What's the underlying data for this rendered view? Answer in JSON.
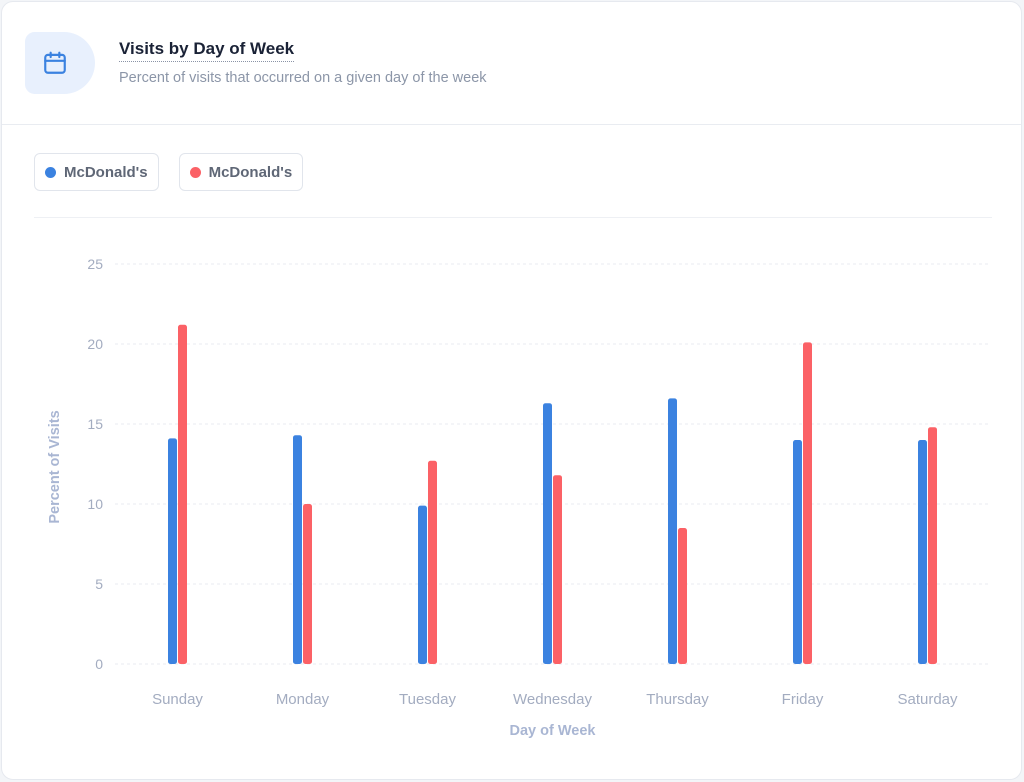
{
  "header": {
    "icon": "calendar-icon",
    "title": "Visits by Day of Week",
    "subtitle": "Percent of visits that occurred on a given day of the week"
  },
  "legend": [
    {
      "label": "McDonald's",
      "color": "#3b82e0"
    },
    {
      "label": "McDonald's",
      "color": "#fb6166"
    }
  ],
  "chart_data": {
    "type": "bar",
    "categories": [
      "Sunday",
      "Monday",
      "Tuesday",
      "Wednesday",
      "Thursday",
      "Friday",
      "Saturday"
    ],
    "series": [
      {
        "name": "McDonald's",
        "color": "#3b82e0",
        "values": [
          14.1,
          14.3,
          9.9,
          16.3,
          16.6,
          14.0,
          14.0
        ]
      },
      {
        "name": "McDonald's",
        "color": "#fb6166",
        "values": [
          21.2,
          10.0,
          12.7,
          11.8,
          8.5,
          20.1,
          14.8
        ]
      }
    ],
    "xlabel": "Day of Week",
    "ylabel": "Percent of Visits",
    "ylim": [
      0,
      25
    ],
    "yticks": [
      0,
      5,
      10,
      15,
      20,
      25
    ],
    "grid": true
  }
}
